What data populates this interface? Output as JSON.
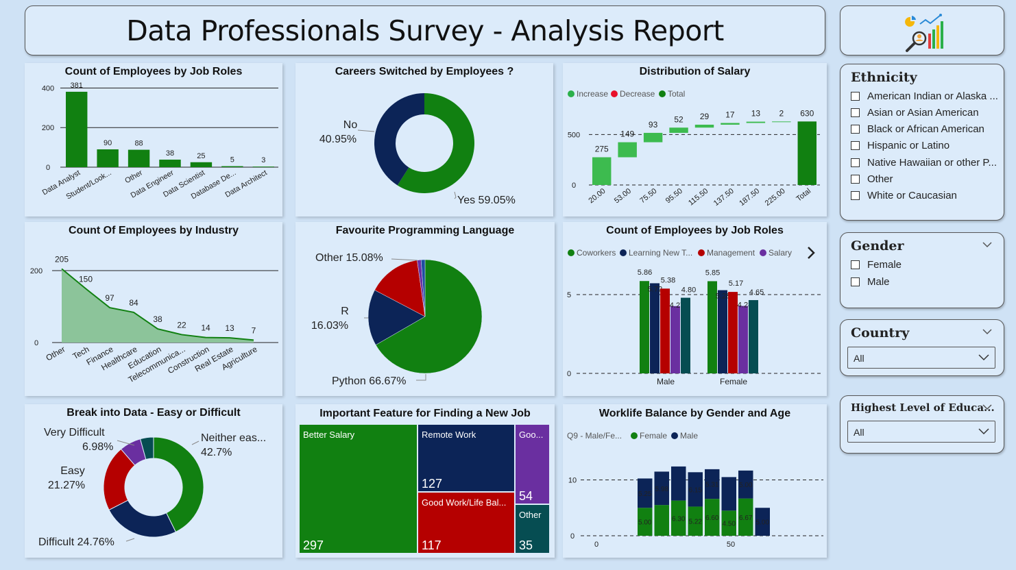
{
  "header": {
    "title": "Data Professionals Survey - Analysis Report"
  },
  "colors": {
    "green": "#118011",
    "navy": "#0c2457",
    "red": "#b50000",
    "purple": "#6a2fa0",
    "teal": "#064d52"
  },
  "slicers": {
    "ethnicity": {
      "title": "Ethnicity",
      "options": [
        "American Indian or Alaska ...",
        "Asian or Asian American",
        "Black or African American",
        "Hispanic or Latino",
        "Native Hawaiian or other P...",
        "Other",
        "White or Caucasian"
      ]
    },
    "gender": {
      "title": "Gender",
      "options": [
        "Female",
        "Male"
      ]
    },
    "country": {
      "title": "Country",
      "value": "All"
    },
    "education": {
      "title": "Highest Level of Educa...",
      "value": "All"
    }
  },
  "chart_data": [
    {
      "id": "job-roles",
      "type": "bar",
      "title": "Count of Employees by Job Roles",
      "categories": [
        "Data Analyst",
        "Student/Look...",
        "Other",
        "Data Engineer",
        "Data Scientist",
        "Database De...",
        "Data Architect"
      ],
      "values": [
        381,
        90,
        88,
        38,
        25,
        5,
        3
      ],
      "ylim": [
        0,
        450
      ],
      "yticks": [
        0,
        200,
        400
      ],
      "grid": true
    },
    {
      "id": "career-switch",
      "type": "pie",
      "donut": true,
      "title": "Careers Switched by Employees ?",
      "slices": [
        {
          "label": "Yes",
          "pct": "59.05%",
          "value": 59.05
        },
        {
          "label": "No",
          "pct": "40.95%",
          "value": 40.95
        }
      ]
    },
    {
      "id": "salary-dist",
      "type": "waterfall",
      "title": "Distribution of Salary",
      "legend": [
        "Increase",
        "Decrease",
        "Total"
      ],
      "categories": [
        "20.00",
        "53.00",
        "75.50",
        "95.50",
        "115.50",
        "137.50",
        "187.50",
        "225.00",
        "Total"
      ],
      "values": [
        275,
        149,
        93,
        52,
        29,
        17,
        13,
        2,
        630
      ],
      "yticks": [
        0,
        500
      ],
      "ylim": [
        0,
        700
      ]
    },
    {
      "id": "industry",
      "type": "area",
      "title": "Count Of Employees by Industry",
      "categories": [
        "Other",
        "Tech",
        "Finance",
        "Healthcare",
        "Education",
        "Telecommunica...",
        "Construction",
        "Real Estate",
        "Agriculture"
      ],
      "values": [
        205,
        150,
        97,
        84,
        38,
        22,
        14,
        13,
        7
      ],
      "yticks": [
        0,
        200
      ],
      "ylim": [
        0,
        240
      ]
    },
    {
      "id": "prog-lang",
      "type": "pie",
      "title": "Favourite Programming Language",
      "slices": [
        {
          "label": "Python",
          "pct": "66.67%",
          "value": 66.67
        },
        {
          "label": "R",
          "pct": "16.03%",
          "value": 16.03
        },
        {
          "label": "Other",
          "pct": "15.08%",
          "value": 15.08
        },
        {
          "label": "",
          "pct": "",
          "value": 1.1
        },
        {
          "label": "",
          "pct": "",
          "value": 1.12
        }
      ]
    },
    {
      "id": "satisfaction",
      "type": "bar",
      "title": "Count of Employees by Job Roles",
      "legend": [
        "Coworkers",
        "Learning New T...",
        "Management",
        "Salary"
      ],
      "categories": [
        "Male",
        "Female"
      ],
      "series": [
        {
          "name": "Coworkers",
          "values": [
            5.86,
            5.85
          ]
        },
        {
          "name": "Learning New T...",
          "values": [
            5.72,
            5.28
          ]
        },
        {
          "name": "Management",
          "values": [
            5.38,
            5.17
          ]
        },
        {
          "name": "Salary",
          "values": [
            4.27,
            4.28
          ]
        },
        {
          "name": "",
          "values": [
            4.8,
            4.65
          ]
        }
      ],
      "yticks": [
        0,
        5
      ],
      "ylim": [
        0,
        7
      ]
    },
    {
      "id": "break-into-data",
      "type": "pie",
      "donut": true,
      "title": "Break into Data - Easy or Difficult",
      "slices": [
        {
          "label": "Neither eas...",
          "pct": "42.7%",
          "value": 42.7
        },
        {
          "label": "Difficult",
          "pct": "24.76%",
          "value": 24.76
        },
        {
          "label": "Easy",
          "pct": "21.27%",
          "value": 21.27
        },
        {
          "label": "Very Difficult",
          "pct": "6.98%",
          "value": 6.98
        },
        {
          "label": "",
          "pct": "",
          "value": 4.29
        }
      ]
    },
    {
      "id": "job-features",
      "type": "treemap",
      "title": "Important Feature for Finding a New Job",
      "items": [
        {
          "label": "Better Salary",
          "value": 297
        },
        {
          "label": "Remote Work",
          "value": 127
        },
        {
          "label": "Good Work/Life Bal...",
          "value": 117
        },
        {
          "label": "Goo...",
          "value": 54
        },
        {
          "label": "Other",
          "value": 35
        }
      ]
    },
    {
      "id": "worklife",
      "type": "bar",
      "stacked": true,
      "title": "Worklife Balance by Gender and Age",
      "legend_title": "Q9 - Male/Fe...",
      "legend": [
        "Female",
        "Male"
      ],
      "xticks": [
        "0",
        "50"
      ],
      "yticks": [
        0,
        10
      ],
      "ylim": [
        0,
        13
      ],
      "groups": [
        {
          "female": 5.0,
          "male": 5.25,
          "fl": "5.00",
          "ml": "5.25"
        },
        {
          "female": 5.5,
          "male": 5.98,
          "fl": "",
          "ml": "5.98"
        },
        {
          "female": 6.3,
          "male": 6.1,
          "fl": "6.30",
          "ml": ""
        },
        {
          "female": 5.22,
          "male": 6.15,
          "fl": "5.22",
          "ml": "6.15"
        },
        {
          "female": 6.6,
          "male": 5.31,
          "fl": "6.60",
          "ml": "5.31"
        },
        {
          "female": 4.5,
          "male": 6.0,
          "fl": "4.50",
          "ml": ""
        },
        {
          "female": 6.67,
          "male": 5.0,
          "fl": "6.67",
          "ml": "5.00"
        },
        {
          "female": 0,
          "male": 5.0,
          "fl": "",
          "ml": "5.00"
        }
      ]
    }
  ]
}
